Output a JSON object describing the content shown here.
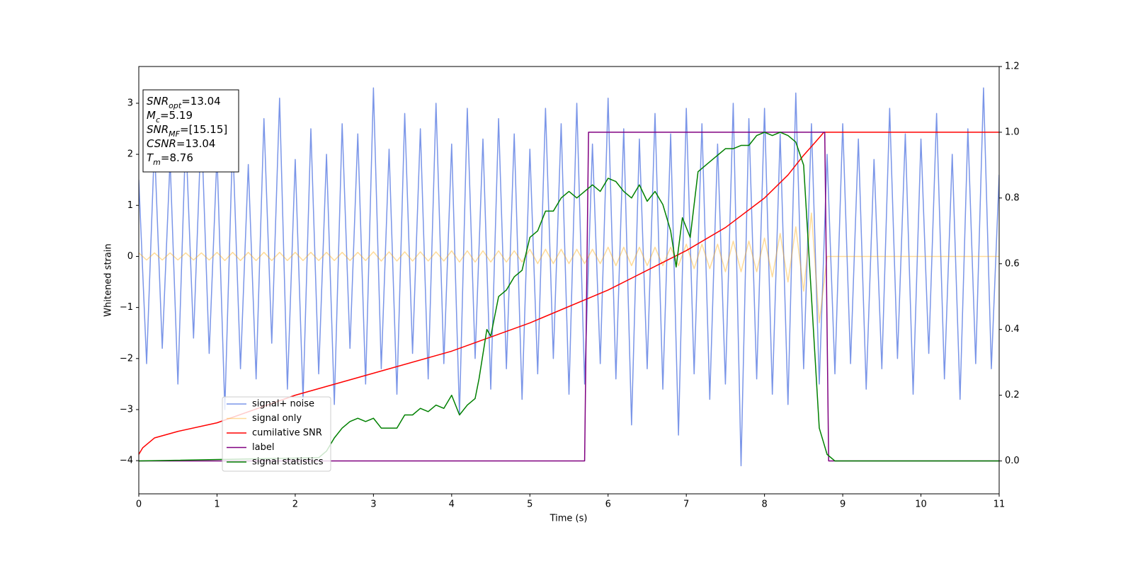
{
  "chart_data": {
    "type": "line",
    "xlabel": "Time (s)",
    "ylabel": "Whitened strain",
    "xlim": [
      0,
      11
    ],
    "ylim": [
      -4.65,
      3.72
    ],
    "y2lim": [
      -0.1,
      1.2
    ],
    "xticks": [
      0,
      1,
      2,
      3,
      4,
      5,
      6,
      7,
      8,
      9,
      10,
      11
    ],
    "yticks": [
      {
        "value": -4,
        "label": "−4"
      },
      {
        "value": -3,
        "label": "−3"
      },
      {
        "value": -2,
        "label": "−2"
      },
      {
        "value": -1,
        "label": "−1"
      },
      0,
      1,
      2,
      3
    ],
    "y2ticks": [
      {
        "value": 0,
        "label": "0.0"
      },
      0.2,
      0.4,
      0.6,
      0.8,
      {
        "value": 1,
        "label": "1.0"
      },
      1.2
    ],
    "legend": "lower left",
    "annotation": [
      {
        "symbol": "SNR",
        "subscript": "opt",
        "text": "=13.04"
      },
      {
        "symbol": "M",
        "subscript": "c",
        "text": "=5.19"
      },
      {
        "symbol": "SNR",
        "subscript": "MF",
        "text": "=[15.15]"
      },
      {
        "symbol": "CSNR",
        "text": "=13.04"
      },
      {
        "symbol": "T",
        "subscript": "m",
        "text": "=8.76"
      }
    ],
    "series": [
      {
        "name": "signal+ noise",
        "color": "#7a95e8",
        "x": [
          0,
          0.1,
          0.2,
          0.3,
          0.4,
          0.5,
          0.6,
          0.7,
          0.8,
          0.9,
          1,
          1.1,
          1.2,
          1.3,
          1.4,
          1.5,
          1.6,
          1.7,
          1.8,
          1.9,
          2,
          2.1,
          2.2,
          2.3,
          2.4,
          2.5,
          2.6,
          2.7,
          2.8,
          2.9,
          3,
          3.1,
          3.2,
          3.3,
          3.4,
          3.5,
          3.6,
          3.7,
          3.8,
          3.9,
          4,
          4.1,
          4.2,
          4.3,
          4.4,
          4.5,
          4.6,
          4.7,
          4.8,
          4.9,
          5,
          5.1,
          5.2,
          5.3,
          5.4,
          5.5,
          5.6,
          5.7,
          5.8,
          5.9,
          6,
          6.1,
          6.2,
          6.3,
          6.4,
          6.5,
          6.6,
          6.7,
          6.8,
          6.9,
          7,
          7.1,
          7.2,
          7.3,
          7.4,
          7.5,
          7.6,
          7.7,
          7.8,
          7.9,
          8,
          8.1,
          8.2,
          8.3,
          8.4,
          8.5,
          8.6,
          8.7,
          8.8,
          8.9,
          9,
          9.1,
          9.2,
          9.3,
          9.4,
          9.5,
          9.6,
          9.7,
          9.8,
          9.9,
          10,
          10.1,
          10.2,
          10.3,
          10.4,
          10.5,
          10.6,
          10.7,
          10.8,
          10.9,
          11
        ],
        "values": [
          1.5,
          -2.1,
          2.2,
          -1.8,
          1.9,
          -2.5,
          2.4,
          -1.6,
          2.6,
          -1.9,
          2.0,
          -3.0,
          2.3,
          -2.2,
          1.8,
          -2.4,
          2.7,
          -1.7,
          3.1,
          -2.6,
          1.9,
          -2.8,
          2.5,
          -2.3,
          2.0,
          -2.9,
          2.6,
          -1.8,
          2.4,
          -2.5,
          3.3,
          -2.2,
          2.1,
          -2.7,
          2.8,
          -1.9,
          2.5,
          -2.4,
          3.0,
          -2.1,
          2.2,
          -3.1,
          2.9,
          -2.0,
          2.3,
          -2.6,
          2.7,
          -2.2,
          2.4,
          -2.8,
          2.1,
          -2.3,
          2.9,
          -2.0,
          2.6,
          -2.7,
          3.0,
          -2.5,
          2.2,
          -2.1,
          3.1,
          -2.4,
          2.5,
          -3.3,
          2.3,
          -2.2,
          2.8,
          -2.6,
          2.4,
          -3.5,
          2.9,
          -2.3,
          2.6,
          -2.8,
          2.2,
          -2.5,
          3.0,
          -4.1,
          2.7,
          -2.4,
          2.9,
          -2.7,
          2.4,
          -2.9,
          3.2,
          -2.2,
          2.6,
          -2.5,
          2.0,
          -2.3,
          2.6,
          -2.1,
          2.3,
          -2.6,
          1.9,
          -2.2,
          2.9,
          -2.0,
          2.4,
          -2.7,
          2.3,
          -1.9,
          2.8,
          -2.4,
          2.0,
          -2.8,
          2.5,
          -2.1,
          3.3,
          -2.2,
          1.6
        ]
      },
      {
        "name": "signal only",
        "color": "orange",
        "alpha": 0.4,
        "x": [
          0,
          0.1,
          0.2,
          0.3,
          0.4,
          0.5,
          0.6,
          0.7,
          0.8,
          0.9,
          1,
          1.1,
          1.2,
          1.3,
          1.4,
          1.5,
          1.6,
          1.7,
          1.8,
          1.9,
          2,
          2.1,
          2.2,
          2.3,
          2.4,
          2.5,
          2.6,
          2.7,
          2.8,
          2.9,
          3,
          3.1,
          3.2,
          3.3,
          3.4,
          3.5,
          3.6,
          3.7,
          3.8,
          3.9,
          4,
          4.1,
          4.2,
          4.3,
          4.4,
          4.5,
          4.6,
          4.7,
          4.8,
          4.9,
          5,
          5.1,
          5.2,
          5.3,
          5.4,
          5.5,
          5.6,
          5.7,
          5.8,
          5.9,
          6,
          6.1,
          6.2,
          6.3,
          6.4,
          6.5,
          6.6,
          6.7,
          6.8,
          6.9,
          7,
          7.1,
          7.2,
          7.3,
          7.4,
          7.5,
          7.6,
          7.7,
          7.8,
          7.9,
          8,
          8.1,
          8.2,
          8.3,
          8.4,
          8.5,
          8.6,
          8.7,
          8.8,
          8.9,
          9,
          9.1,
          9.2,
          9.3,
          9.4,
          9.5,
          9.6,
          9.7,
          9.8,
          9.9,
          10,
          10.1,
          10.2,
          10.3,
          10.4,
          10.5,
          10.6,
          10.7,
          10.8,
          10.9,
          11
        ],
        "values": [
          0.07,
          -0.07,
          0.07,
          -0.07,
          0.07,
          -0.07,
          0.07,
          -0.07,
          0.07,
          -0.07,
          0.08,
          -0.08,
          0.08,
          -0.08,
          0.08,
          -0.08,
          0.08,
          -0.08,
          0.08,
          -0.08,
          0.08,
          -0.08,
          0.08,
          -0.08,
          0.08,
          -0.08,
          0.08,
          -0.08,
          0.08,
          -0.08,
          0.09,
          -0.09,
          0.09,
          -0.09,
          0.09,
          -0.09,
          0.09,
          -0.09,
          0.09,
          -0.09,
          0.11,
          -0.11,
          0.11,
          -0.11,
          0.11,
          -0.11,
          0.11,
          -0.11,
          0.11,
          -0.11,
          0.14,
          -0.14,
          0.14,
          -0.14,
          0.14,
          -0.14,
          0.14,
          -0.14,
          0.14,
          -0.14,
          0.18,
          -0.18,
          0.18,
          -0.18,
          0.18,
          -0.18,
          0.18,
          -0.18,
          0.18,
          -0.18,
          0.24,
          -0.24,
          0.24,
          -0.24,
          0.24,
          -0.3,
          0.3,
          -0.3,
          0.3,
          -0.3,
          0.36,
          -0.4,
          0.45,
          -0.5,
          0.58,
          -0.68,
          0.85,
          -1.3,
          0,
          0,
          0,
          0,
          0,
          0,
          0,
          0,
          0,
          0,
          0,
          0,
          0,
          0,
          0,
          0,
          0,
          0,
          0,
          0,
          0,
          0,
          0
        ]
      },
      {
        "name": "cumilative SNR",
        "color": "red",
        "axis": "y2",
        "x": [
          0,
          0.05,
          0.2,
          0.5,
          1,
          2,
          3,
          4,
          5,
          6,
          7,
          7.5,
          8,
          8.3,
          8.5,
          8.65,
          8.76,
          9,
          10,
          11
        ],
        "values": [
          0.02,
          0.04,
          0.07,
          0.09,
          0.116,
          0.2,
          0.267,
          0.334,
          0.42,
          0.52,
          0.64,
          0.71,
          0.8,
          0.87,
          0.93,
          0.97,
          1.0,
          1.0,
          1.0,
          1.0
        ]
      },
      {
        "name": "label",
        "color": "purple",
        "axis": "y2",
        "x": [
          0,
          5.7,
          5.75,
          8.77,
          8.82,
          11
        ],
        "values": [
          0,
          0,
          1,
          1,
          0,
          0
        ]
      },
      {
        "name": "signal statistics",
        "color": "green",
        "axis": "y2",
        "x": [
          0,
          2.3,
          2.4,
          2.5,
          2.6,
          2.7,
          2.8,
          2.9,
          3,
          3.1,
          3.2,
          3.3,
          3.4,
          3.5,
          3.6,
          3.7,
          3.8,
          3.9,
          4,
          4.1,
          4.2,
          4.3,
          4.35,
          4.45,
          4.5,
          4.6,
          4.7,
          4.8,
          4.9,
          5,
          5.1,
          5.2,
          5.3,
          5.4,
          5.5,
          5.6,
          5.7,
          5.8,
          5.9,
          6,
          6.1,
          6.2,
          6.3,
          6.4,
          6.5,
          6.6,
          6.7,
          6.8,
          6.87,
          6.95,
          7.05,
          7.15,
          7.3,
          7.4,
          7.5,
          7.6,
          7.7,
          7.8,
          7.9,
          8,
          8.1,
          8.2,
          8.3,
          8.4,
          8.5,
          8.6,
          8.7,
          8.8,
          8.9,
          9,
          11
        ],
        "values": [
          0,
          0.01,
          0.03,
          0.07,
          0.1,
          0.12,
          0.13,
          0.12,
          0.13,
          0.1,
          0.1,
          0.1,
          0.14,
          0.14,
          0.16,
          0.15,
          0.17,
          0.16,
          0.2,
          0.14,
          0.17,
          0.19,
          0.25,
          0.4,
          0.38,
          0.5,
          0.52,
          0.56,
          0.58,
          0.68,
          0.7,
          0.76,
          0.76,
          0.8,
          0.82,
          0.8,
          0.82,
          0.84,
          0.82,
          0.86,
          0.85,
          0.82,
          0.8,
          0.84,
          0.79,
          0.82,
          0.78,
          0.7,
          0.59,
          0.74,
          0.68,
          0.88,
          0.91,
          0.93,
          0.95,
          0.95,
          0.96,
          0.96,
          0.99,
          1.0,
          0.99,
          1.0,
          0.99,
          0.97,
          0.9,
          0.5,
          0.1,
          0.02,
          0,
          0,
          0
        ]
      }
    ]
  }
}
